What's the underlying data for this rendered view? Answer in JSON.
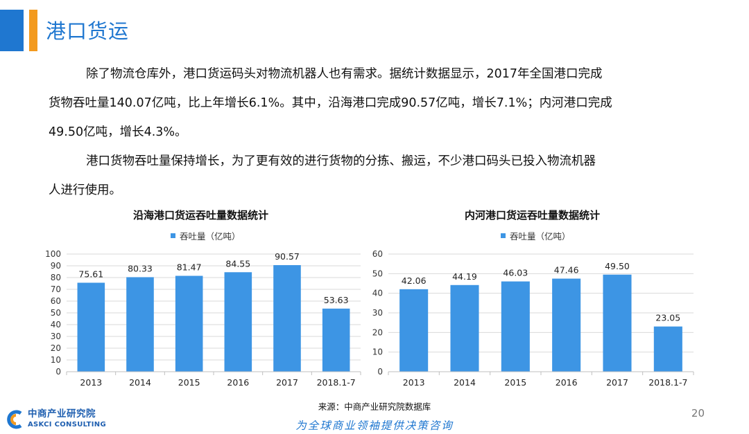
{
  "header": {
    "title": "港口货运"
  },
  "body": {
    "paragraph1": [
      "除了物流仓库外，港口货运码头对物流机器人也有需求。据统计数据显示，2017年全国港口完成",
      "货物吞吐量140.07亿吨，比上年增长6.1%。其中，沿海港口完成90.57亿吨，增长7.1%；内河港口完成",
      "49.50亿吨，增长4.3%。"
    ],
    "paragraph2": [
      "港口货物吞吐量保持增长，为了更有效的进行货物的分拣、搬运，不少港口码头已投入物流机器",
      "人进行使用。"
    ]
  },
  "colors": {
    "accent": "#1f77d0",
    "accent_orange": "#f39a1e",
    "bar": "#3d95e4"
  },
  "chart_data": [
    {
      "type": "bar",
      "title": "沿海港口货运吞吐量数据统计",
      "legend": "吞吐量（亿吨）",
      "legend_position": "top",
      "categories": [
        "2013",
        "2014",
        "2015",
        "2016",
        "2017",
        "2018.1-7"
      ],
      "series": [
        {
          "name": "吞吐量（亿吨）",
          "values": [
            75.61,
            80.33,
            81.47,
            84.55,
            90.57,
            53.63
          ]
        }
      ],
      "ylim": [
        0,
        100
      ],
      "yticks": [
        0,
        10,
        20,
        30,
        40,
        50,
        60,
        70,
        80,
        90,
        100
      ],
      "data_labels": [
        "75.61",
        "80.33",
        "81.47",
        "84.55",
        "90.57",
        "53.63"
      ]
    },
    {
      "type": "bar",
      "title": "内河港口货运吞吐量数据统计",
      "legend": "吞吐量（亿吨）",
      "legend_position": "top",
      "categories": [
        "2013",
        "2014",
        "2015",
        "2016",
        "2017",
        "2018.1-7"
      ],
      "series": [
        {
          "name": "吞吐量（亿吨）",
          "values": [
            42.06,
            44.19,
            46.03,
            47.46,
            49.5,
            23.05
          ]
        }
      ],
      "ylim": [
        0,
        60
      ],
      "yticks": [
        0,
        10,
        20,
        30,
        40,
        50,
        60
      ],
      "data_labels": [
        "42.06",
        "44.19",
        "46.03",
        "47.46",
        "49.50",
        "23.05"
      ]
    }
  ],
  "footer": {
    "source": "来源：中商产业研究院数据库",
    "page_number": "20",
    "slogan": "为全球商业领袖提供决策咨询",
    "logo_cn": "中商产业研究院",
    "logo_en": "ASKCI CONSULTING",
    "logo_icon": "askci-logo-icon"
  }
}
